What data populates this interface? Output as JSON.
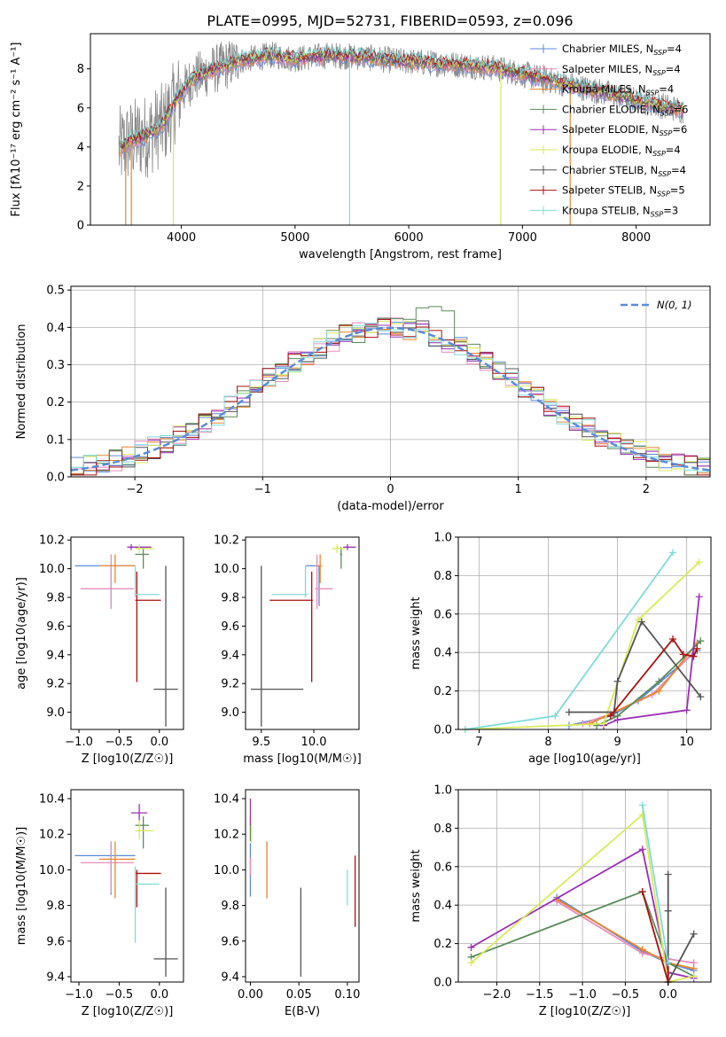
{
  "title": "PLATE=0995, MJD=52731, FIBERID=0593, z=0.096",
  "colors": {
    "chab_miles": "#5b8bd9",
    "salp_miles": "#e88dbb",
    "krou_miles": "#e8862f",
    "chab_elodie": "#5b8b5b",
    "salp_elodie": "#9b2fb6",
    "krou_elodie": "#d9ea5a",
    "chab_stelib": "#555555",
    "salp_stelib": "#aa1111",
    "krou_stelib": "#7fdbdb",
    "data": "#888888",
    "normal": "#5b8bd9"
  },
  "chart_data": [
    {
      "id": "spectrum",
      "type": "line",
      "xlabel": "wavelength [Angstrom, rest frame]",
      "ylabel": "Flux [fλ10⁻¹⁷ erg cm⁻² s⁻¹ A⁻¹]",
      "xlim": [
        3200,
        8650
      ],
      "ylim": [
        0,
        9.8
      ],
      "xticks": [
        4000,
        5000,
        6000,
        7000,
        8000
      ],
      "yticks": [
        0,
        2,
        4,
        6,
        8
      ],
      "legend_loc": "upper right",
      "grid": false,
      "continuum": {
        "x": [
          3450,
          3550,
          3700,
          3850,
          3950,
          4100,
          4300,
          4500,
          4800,
          5000,
          5300,
          5600,
          5900,
          6200,
          6500,
          6800,
          7100,
          7400,
          7700,
          8000,
          8400
        ],
        "y": [
          3.9,
          4.3,
          4.6,
          5.2,
          6.4,
          7.5,
          8.0,
          8.4,
          8.7,
          8.5,
          8.7,
          8.6,
          8.4,
          8.3,
          8.2,
          8.0,
          7.6,
          7.2,
          6.8,
          6.4,
          5.9
        ]
      },
      "series": [
        {
          "name": "Chabrier MILES, N_SSP=4",
          "color": "chab_miles"
        },
        {
          "name": "Salpeter MILES, N_SSP=4",
          "color": "salp_miles"
        },
        {
          "name": "Kroupa MILES, N_SSP=4",
          "color": "krou_miles"
        },
        {
          "name": "Chabrier ELODIE, N_SSP=6",
          "color": "chab_elodie"
        },
        {
          "name": "Salpeter ELODIE, N_SSP=6",
          "color": "salp_elodie"
        },
        {
          "name": "Kroupa ELODIE, N_SSP=4",
          "color": "krou_elodie"
        },
        {
          "name": "Chabrier STELIB, N_SSP=4",
          "color": "chab_stelib"
        },
        {
          "name": "Salpeter STELIB, N_SSP=5",
          "color": "salp_stelib"
        },
        {
          "name": "Kroupa STELIB, N_SSP=3",
          "color": "krou_stelib"
        }
      ]
    },
    {
      "id": "residuals",
      "type": "histogram",
      "xlabel": "(data-model)/error",
      "ylabel": "Normed distribution",
      "xlim": [
        -2.5,
        2.5
      ],
      "ylim": [
        0,
        0.51
      ],
      "xticks": [
        -2,
        -1,
        0,
        1,
        2
      ],
      "yticks": [
        0.0,
        0.1,
        0.2,
        0.3,
        0.4,
        0.5
      ],
      "grid": true,
      "legend_label": "N(0, 1)",
      "legend_loc": "upper right"
    },
    {
      "id": "age_vs_Z",
      "type": "errorbar",
      "xlabel": "Z [log10(Z/Z☉)]",
      "ylabel": "age  [log10(age/yr)]",
      "xlim": [
        -1.1,
        0.3
      ],
      "ylim": [
        8.88,
        10.22
      ],
      "xticks": [
        -1.0,
        -0.5,
        0.0
      ],
      "yticks": [
        9.0,
        9.2,
        9.4,
        9.6,
        9.8,
        10.0,
        10.2
      ],
      "points": [
        {
          "c": "chab_miles",
          "x": -0.6,
          "xe": [
            0.45,
            0.3
          ],
          "y": 10.02,
          "ye": [
            0.28,
            0.0
          ]
        },
        {
          "c": "salp_miles",
          "x": -0.6,
          "xe": [
            0.38,
            0.28
          ],
          "y": 9.86,
          "ye": [
            0.14,
            0.24
          ]
        },
        {
          "c": "krou_miles",
          "x": -0.55,
          "xe": [
            0.2,
            0.25
          ],
          "y": 10.02,
          "ye": [
            0.12,
            0.08
          ]
        },
        {
          "c": "chab_elodie",
          "x": -0.2,
          "xe": [
            0.1,
            0.07
          ],
          "y": 10.1,
          "ye": [
            0.1,
            0.05
          ]
        },
        {
          "c": "salp_elodie",
          "x": -0.35,
          "xe": [
            0.05,
            0.25
          ],
          "y": 10.15,
          "ye": [
            0.02,
            0.02
          ]
        },
        {
          "c": "krou_elodie",
          "x": -0.25,
          "xe": [
            0.05,
            0.18
          ],
          "y": 10.14,
          "ye": [
            0.03,
            0.03
          ]
        },
        {
          "c": "chab_stelib",
          "x": 0.08,
          "xe": [
            0.15,
            0.15
          ],
          "y": 9.16,
          "ye": [
            0.26,
            0.86
          ]
        },
        {
          "c": "salp_stelib",
          "x": -0.28,
          "xe": [
            0.02,
            0.3
          ],
          "y": 9.78,
          "ye": [
            0.57,
            0.2
          ]
        },
        {
          "c": "krou_stelib",
          "x": -0.3,
          "xe": [
            0.0,
            0.3
          ],
          "y": 9.82,
          "ye": [
            0.02,
            0.2
          ]
        }
      ]
    },
    {
      "id": "age_vs_mass",
      "type": "errorbar",
      "xlabel": "mass [log10(M/M☉)]",
      "ylabel": "",
      "xlim": [
        9.35,
        10.43
      ],
      "ylim": [
        8.88,
        10.22
      ],
      "xticks": [
        9.5,
        10.0
      ],
      "yticks": [
        9.0,
        9.2,
        9.4,
        9.6,
        9.8,
        10.0,
        10.2
      ],
      "points": [
        {
          "c": "chab_miles",
          "x": 10.05,
          "xe": [
            0.13,
            0.01
          ],
          "y": 10.02,
          "ye": [
            0.28,
            0.0
          ]
        },
        {
          "c": "salp_miles",
          "x": 10.03,
          "xe": [
            0.02,
            0.15
          ],
          "y": 9.86,
          "ye": [
            0.14,
            0.24
          ]
        },
        {
          "c": "krou_miles",
          "x": 10.06,
          "xe": [
            0.02,
            0.02
          ],
          "y": 10.02,
          "ye": [
            0.12,
            0.08
          ]
        },
        {
          "c": "chab_elodie",
          "x": 10.26,
          "xe": [
            0.01,
            0.01
          ],
          "y": 10.1,
          "ye": [
            0.1,
            0.05
          ]
        },
        {
          "c": "salp_elodie",
          "x": 10.32,
          "xe": [
            0.04,
            0.08
          ],
          "y": 10.15,
          "ye": [
            0.02,
            0.02
          ]
        },
        {
          "c": "krou_elodie",
          "x": 10.22,
          "xe": [
            0.05,
            0.08
          ],
          "y": 10.14,
          "ye": [
            0.03,
            0.03
          ]
        },
        {
          "c": "chab_stelib",
          "x": 9.5,
          "xe": [
            0.1,
            0.4
          ],
          "y": 9.16,
          "ye": [
            0.26,
            0.86
          ]
        },
        {
          "c": "salp_stelib",
          "x": 9.98,
          "xe": [
            0.4,
            0.01
          ],
          "y": 9.78,
          "ye": [
            0.57,
            0.2
          ]
        },
        {
          "c": "krou_stelib",
          "x": 9.92,
          "xe": [
            0.32,
            0.02
          ],
          "y": 9.82,
          "ye": [
            0.02,
            0.2
          ]
        }
      ]
    },
    {
      "id": "mw_vs_age",
      "type": "line",
      "xlabel": "age  [log10(age/yr)]",
      "ylabel": "mass weight",
      "xlim": [
        6.7,
        10.35
      ],
      "ylim": [
        0,
        1.0
      ],
      "xticks": [
        7,
        8,
        9,
        10
      ],
      "yticks": [
        0.0,
        0.2,
        0.4,
        0.6,
        0.8,
        1.0
      ],
      "grid": true,
      "series": [
        {
          "c": "chab_miles",
          "x": [
            8.3,
            8.9,
            9.3,
            10.15
          ],
          "y": [
            0.02,
            0.07,
            0.15,
            0.41
          ]
        },
        {
          "c": "salp_miles",
          "x": [
            8.5,
            8.9,
            9.5,
            10.15
          ],
          "y": [
            0.03,
            0.08,
            0.18,
            0.42
          ]
        },
        {
          "c": "krou_miles",
          "x": [
            8.6,
            8.95,
            9.6,
            10.15
          ],
          "y": [
            0.03,
            0.09,
            0.2,
            0.45
          ]
        },
        {
          "c": "chab_elodie",
          "x": [
            8.7,
            9.0,
            9.6,
            10.2
          ],
          "y": [
            0.02,
            0.07,
            0.25,
            0.46
          ]
        },
        {
          "c": "salp_elodie",
          "x": [
            8.8,
            9.0,
            10.0,
            10.18
          ],
          "y": [
            0.02,
            0.05,
            0.1,
            0.69
          ]
        },
        {
          "c": "krou_elodie",
          "x": [
            6.8,
            8.8,
            9.3,
            10.18
          ],
          "y": [
            0.0,
            0.03,
            0.57,
            0.87
          ]
        },
        {
          "c": "chab_stelib",
          "x": [
            8.3,
            8.95,
            9.0,
            9.35,
            10.2
          ],
          "y": [
            0.09,
            0.09,
            0.25,
            0.56,
            0.17
          ]
        },
        {
          "c": "salp_stelib",
          "x": [
            8.9,
            9.8,
            9.95,
            10.1,
            10.15
          ],
          "y": [
            0.07,
            0.47,
            0.39,
            0.38,
            0.42
          ]
        },
        {
          "c": "krou_stelib",
          "x": [
            6.8,
            8.1,
            9.8
          ],
          "y": [
            0.0,
            0.07,
            0.92
          ]
        }
      ]
    },
    {
      "id": "mass_vs_Z",
      "type": "errorbar",
      "xlabel": "Z [log10(Z/Z☉)]",
      "ylabel": "mass [log10(M/M☉)]",
      "xlim": [
        -1.1,
        0.3
      ],
      "ylim": [
        9.37,
        10.45
      ],
      "xticks": [
        -1.0,
        -0.5,
        0.0
      ],
      "yticks": [
        9.4,
        9.6,
        9.8,
        10.0,
        10.2,
        10.4
      ],
      "points": [
        {
          "c": "chab_miles",
          "x": -0.6,
          "xe": [
            0.45,
            0.3
          ],
          "y": 10.08,
          "ye": [
            0.22,
            0.08
          ]
        },
        {
          "c": "salp_miles",
          "x": -0.6,
          "xe": [
            0.38,
            0.28
          ],
          "y": 10.04,
          "ye": [
            0.17,
            0.12
          ]
        },
        {
          "c": "krou_miles",
          "x": -0.55,
          "xe": [
            0.2,
            0.25
          ],
          "y": 10.06,
          "ye": [
            0.22,
            0.1
          ]
        },
        {
          "c": "chab_elodie",
          "x": -0.2,
          "xe": [
            0.1,
            0.07
          ],
          "y": 10.25,
          "ye": [
            0.13,
            0.05
          ]
        },
        {
          "c": "salp_elodie",
          "x": -0.25,
          "xe": [
            0.1,
            0.1
          ],
          "y": 10.32,
          "ye": [
            0.05,
            0.05
          ]
        },
        {
          "c": "krou_elodie",
          "x": -0.25,
          "xe": [
            0.05,
            0.18
          ],
          "y": 10.22,
          "ye": [
            0.05,
            0.06
          ]
        },
        {
          "c": "chab_stelib",
          "x": 0.08,
          "xe": [
            0.15,
            0.15
          ],
          "y": 9.5,
          "ye": [
            0.1,
            0.4
          ]
        },
        {
          "c": "salp_stelib",
          "x": -0.28,
          "xe": [
            0.02,
            0.3
          ],
          "y": 9.98,
          "ye": [
            0.19,
            0.02
          ]
        },
        {
          "c": "krou_stelib",
          "x": -0.3,
          "xe": [
            0.0,
            0.3
          ],
          "y": 9.92,
          "ye": [
            0.33,
            0.1
          ]
        }
      ]
    },
    {
      "id": "mass_vs_ebv",
      "type": "errorbar",
      "xlabel": "E(B-V)",
      "ylabel": "",
      "xlim": [
        -0.005,
        0.112
      ],
      "ylim": [
        9.37,
        10.45
      ],
      "xticks": [
        0.0,
        0.05,
        0.1
      ],
      "xtick_labels": [
        "0.00",
        "0.05",
        "0.10"
      ],
      "yticks": [
        9.4,
        9.6,
        9.8,
        10.0,
        10.2,
        10.4
      ],
      "points": [
        {
          "c": "chab_miles",
          "x": 0.0,
          "xe": [
            0,
            0
          ],
          "y": 10.05,
          "ye": [
            0.2,
            0.1
          ]
        },
        {
          "c": "salp_miles",
          "x": 0.0,
          "xe": [
            0,
            0
          ],
          "y": 10.02,
          "ye": [
            0.05,
            0.05
          ]
        },
        {
          "c": "krou_miles",
          "x": 0.017,
          "xe": [
            0,
            0
          ],
          "y": 10.0,
          "ye": [
            0.16,
            0.16
          ]
        },
        {
          "c": "chab_elodie",
          "x": 0.0,
          "xe": [
            0,
            0
          ],
          "y": 10.23,
          "ye": [
            0.07,
            0.07
          ]
        },
        {
          "c": "salp_elodie",
          "x": 0.0,
          "xe": [
            0,
            0
          ],
          "y": 10.3,
          "ye": [
            0.05,
            0.1
          ]
        },
        {
          "c": "krou_elodie",
          "x": 0.001,
          "xe": [
            0,
            0
          ],
          "y": 10.2,
          "ye": [
            0.05,
            0.1
          ]
        },
        {
          "c": "chab_stelib",
          "x": 0.052,
          "xe": [
            0,
            0
          ],
          "y": 9.65,
          "ye": [
            0.25,
            0.25
          ]
        },
        {
          "c": "salp_stelib",
          "x": 0.108,
          "xe": [
            0,
            0
          ],
          "y": 9.88,
          "ye": [
            0.2,
            0.2
          ]
        },
        {
          "c": "krou_stelib",
          "x": 0.1,
          "xe": [
            0,
            0
          ],
          "y": 9.9,
          "ye": [
            0.1,
            0.1
          ]
        }
      ]
    },
    {
      "id": "mw_vs_Z",
      "type": "line",
      "xlabel": "Z [log10(Z/Z☉)]",
      "ylabel": "mass weight",
      "xlim": [
        -2.45,
        0.5
      ],
      "ylim": [
        0,
        1.0
      ],
      "xticks": [
        -2.0,
        -1.5,
        -1.0,
        -0.5,
        0.0
      ],
      "yticks": [
        0.0,
        0.2,
        0.4,
        0.6,
        0.8,
        1.0
      ],
      "grid": true,
      "series": [
        {
          "c": "chab_miles",
          "x": [
            -1.3,
            -0.3,
            0.0,
            0.3
          ],
          "y": [
            0.44,
            0.16,
            0.1,
            0.06
          ]
        },
        {
          "c": "salp_miles",
          "x": [
            -1.3,
            -0.3,
            0.0,
            0.3
          ],
          "y": [
            0.42,
            0.15,
            0.12,
            0.1
          ]
        },
        {
          "c": "krou_miles",
          "x": [
            -1.3,
            -0.3,
            0.0,
            0.3
          ],
          "y": [
            0.43,
            0.17,
            0.1,
            0.07
          ]
        },
        {
          "c": "chab_elodie",
          "x": [
            -2.3,
            -0.3,
            0.0,
            0.3
          ],
          "y": [
            0.13,
            0.47,
            0.1,
            0.03
          ]
        },
        {
          "c": "salp_elodie",
          "x": [
            -2.3,
            -0.3,
            0.0,
            0.3
          ],
          "y": [
            0.18,
            0.69,
            0.05,
            0.02
          ]
        },
        {
          "c": "krou_elodie",
          "x": [
            -2.3,
            -0.3,
            0.0,
            0.3
          ],
          "y": [
            0.1,
            0.87,
            0.0,
            0.03
          ]
        },
        {
          "c": "chab_stelib",
          "x": [
            0.0,
            0.0,
            0.0,
            0.3
          ],
          "y": [
            0.56,
            0.37,
            0.0,
            0.25
          ]
        },
        {
          "c": "salp_stelib",
          "x": [
            -0.3,
            0.0,
            0.0
          ],
          "y": [
            0.47,
            0.0,
            0.1
          ]
        },
        {
          "c": "krou_stelib",
          "x": [
            -0.3,
            0.0
          ],
          "y": [
            0.92,
            0.1
          ]
        }
      ]
    }
  ]
}
